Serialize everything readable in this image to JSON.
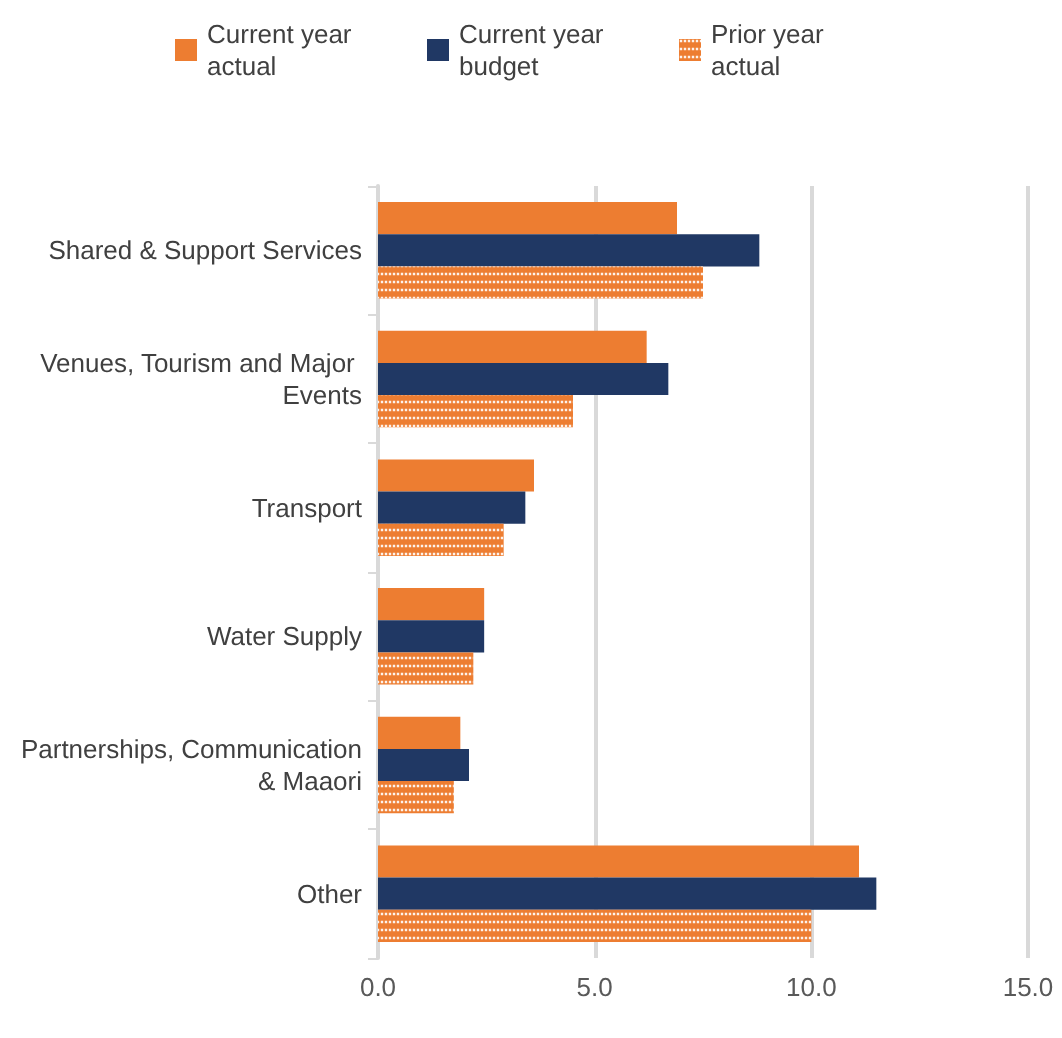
{
  "chart_data": {
    "type": "bar",
    "orientation": "horizontal",
    "categories": [
      "Shared & Support Services",
      "Venues, Tourism and Major Events",
      "Transport",
      "Water Supply",
      "Partnerships, Communication & Maaori",
      "Other"
    ],
    "series": [
      {
        "name": "Current year actual",
        "color": "#ed7d31",
        "values": [
          6.9,
          6.2,
          3.6,
          2.45,
          1.9,
          11.1
        ]
      },
      {
        "name": "Current year budget",
        "color": "#203864",
        "values": [
          8.8,
          6.7,
          3.4,
          2.45,
          2.1,
          11.5
        ]
      },
      {
        "name": "Prior year actual",
        "color": "#ed7d31",
        "values": [
          7.5,
          4.5,
          2.9,
          2.2,
          1.75,
          10.0
        ]
      }
    ],
    "xlim": [
      0,
      15
    ],
    "xticks": [
      {
        "value": 0,
        "label": "0.0"
      },
      {
        "value": 5,
        "label": "5.0"
      },
      {
        "value": 10,
        "label": "10.0"
      },
      {
        "value": 15,
        "label": "15.0"
      }
    ],
    "grid": "x",
    "legend": "top"
  }
}
